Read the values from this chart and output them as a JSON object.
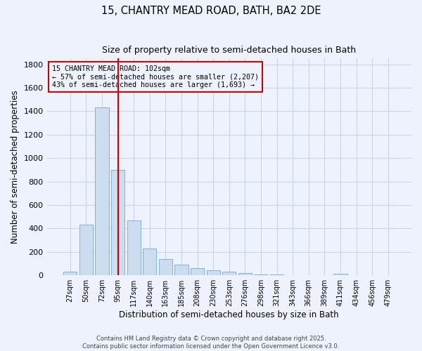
{
  "title": "15, CHANTRY MEAD ROAD, BATH, BA2 2DE",
  "subtitle": "Size of property relative to semi-detached houses in Bath",
  "xlabel": "Distribution of semi-detached houses by size in Bath",
  "ylabel": "Number of semi-detached properties",
  "bin_labels": [
    "27sqm",
    "50sqm",
    "72sqm",
    "95sqm",
    "117sqm",
    "140sqm",
    "163sqm",
    "185sqm",
    "208sqm",
    "230sqm",
    "253sqm",
    "276sqm",
    "298sqm",
    "321sqm",
    "343sqm",
    "366sqm",
    "389sqm",
    "411sqm",
    "434sqm",
    "456sqm",
    "479sqm"
  ],
  "bar_values": [
    30,
    430,
    1430,
    900,
    470,
    230,
    140,
    90,
    60,
    45,
    30,
    20,
    10,
    5,
    3,
    2,
    2,
    15,
    2,
    2,
    1
  ],
  "bar_color": "#ccddf0",
  "bar_edgecolor": "#85afd4",
  "grid_color": "#c8d4e8",
  "background_color": "#eef2fc",
  "vline_color": "#cc0000",
  "annotation_title": "15 CHANTRY MEAD ROAD: 102sqm",
  "annotation_line1": "← 57% of semi-detached houses are smaller (2,207)",
  "annotation_line2": "43% of semi-detached houses are larger (1,693) →",
  "annotation_box_color": "#cc0000",
  "ylim": [
    0,
    1850
  ],
  "yticks": [
    0,
    200,
    400,
    600,
    800,
    1000,
    1200,
    1400,
    1600,
    1800
  ],
  "footer_line1": "Contains HM Land Registry data © Crown copyright and database right 2025.",
  "footer_line2": "Contains public sector information licensed under the Open Government Licence v3.0."
}
